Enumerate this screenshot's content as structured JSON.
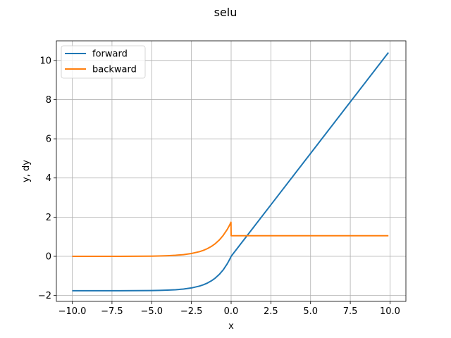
{
  "chart_data": {
    "type": "line",
    "title": "selu",
    "xlabel": "x",
    "ylabel": "y, dy",
    "xlim": [
      -11.0,
      11.0
    ],
    "ylim": [
      -2.3,
      11.0
    ],
    "xticks": [
      -10.0,
      -7.5,
      -5.0,
      -2.5,
      0.0,
      2.5,
      5.0,
      7.5,
      10.0
    ],
    "xtick_labels": [
      "−10.0",
      "−7.5",
      "−5.0",
      "−2.5",
      "0.0",
      "2.5",
      "5.0",
      "7.5",
      "10.0"
    ],
    "yticks": [
      -2,
      0,
      2,
      4,
      6,
      8,
      10
    ],
    "ytick_labels": [
      "−2",
      "0",
      "2",
      "4",
      "6",
      "8",
      "10"
    ],
    "grid": true,
    "legend_position": "top-left",
    "series": [
      {
        "name": "forward",
        "color": "#1f77b4",
        "x": [
          -10.0,
          -9.0,
          -8.0,
          -7.0,
          -6.0,
          -5.0,
          -4.5,
          -4.0,
          -3.5,
          -3.0,
          -2.5,
          -2.0,
          -1.75,
          -1.5,
          -1.25,
          -1.0,
          -0.75,
          -0.5,
          -0.25,
          -0.1,
          0.0,
          0.5,
          1.0,
          2.5,
          5.0,
          7.5,
          9.9
        ],
        "y": [
          -1.758,
          -1.758,
          -1.758,
          -1.756,
          -1.754,
          -1.746,
          -1.739,
          -1.726,
          -1.705,
          -1.671,
          -1.614,
          -1.52,
          -1.453,
          -1.366,
          -1.255,
          -1.111,
          -0.927,
          -0.692,
          -0.388,
          -0.167,
          0.0,
          0.525,
          1.051,
          2.627,
          5.254,
          7.881,
          10.403
        ]
      },
      {
        "name": "backward",
        "color": "#ff7f0e",
        "x": [
          -10.0,
          -9.0,
          -8.0,
          -7.0,
          -6.0,
          -5.0,
          -4.5,
          -4.0,
          -3.5,
          -3.0,
          -2.5,
          -2.0,
          -1.75,
          -1.5,
          -1.25,
          -1.0,
          -0.75,
          -0.5,
          -0.25,
          -0.1,
          -0.01,
          0.0,
          0.5,
          2.5,
          5.0,
          7.5,
          9.9
        ],
        "y": [
          0.0001,
          0.0002,
          0.0006,
          0.0016,
          0.0041,
          0.0118,
          0.0195,
          0.0321,
          0.053,
          0.087,
          0.144,
          0.237,
          0.305,
          0.391,
          0.503,
          0.646,
          0.83,
          1.066,
          1.368,
          1.589,
          1.741,
          1.051,
          1.051,
          1.051,
          1.051,
          1.051,
          1.051
        ]
      }
    ]
  }
}
